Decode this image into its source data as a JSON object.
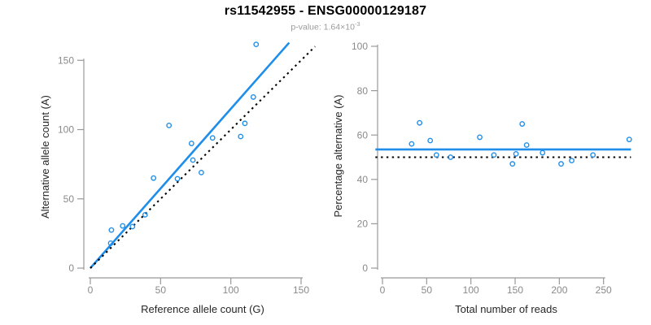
{
  "header": {
    "title": "rs11542955 - ENSG00000129187",
    "subtitle_prefix": "p-value: 1.64×10",
    "subtitle_exponent": "-3"
  },
  "colors": {
    "blue": "#1E8EEA",
    "black": "#000000",
    "axis_gray": "#999999",
    "tick_label_gray": "#8A8A8A",
    "subtitle_gray": "#9A9A9A",
    "axis_title_color": "#262626"
  },
  "chart_data": [
    {
      "type": "scatter",
      "xlabel": "Reference allele count (G)",
      "ylabel": "Alternative allele count (A)",
      "x_ticks": [
        0,
        50,
        100,
        150
      ],
      "y_ticks": [
        0,
        50,
        100,
        150
      ],
      "xlim": [
        0,
        160
      ],
      "ylim": [
        0,
        165
      ],
      "grid": false,
      "points": [
        [
          14.5,
          18
        ],
        [
          15,
          27.5
        ],
        [
          23,
          30.5
        ],
        [
          30,
          30
        ],
        [
          39,
          38.5
        ],
        [
          45,
          65
        ],
        [
          56,
          103
        ],
        [
          62,
          64.5
        ],
        [
          72,
          90
        ],
        [
          73,
          78
        ],
        [
          79,
          69
        ],
        [
          87,
          94
        ],
        [
          107,
          95
        ],
        [
          110,
          104.5
        ],
        [
          116,
          123.5
        ],
        [
          118,
          161.5
        ]
      ],
      "lines": [
        {
          "name": "fitted-proportion-line",
          "style": "solid",
          "color_key": "blue",
          "slope": 1.15,
          "intercept": 0,
          "x_range": [
            0,
            141.5
          ]
        },
        {
          "name": "identity-line",
          "style": "dotted",
          "color_key": "black",
          "slope": 1,
          "intercept": 0,
          "x_range": [
            0,
            160
          ]
        }
      ]
    },
    {
      "type": "scatter",
      "xlabel": "Total number of reads",
      "ylabel": "Percentage alternative (A)",
      "x_ticks": [
        0,
        50,
        100,
        150,
        200,
        250
      ],
      "y_ticks": [
        0,
        20,
        40,
        60,
        80,
        100
      ],
      "xlim": [
        0,
        290
      ],
      "ylim": [
        0,
        100
      ],
      "grid": false,
      "points": [
        [
          33,
          56
        ],
        [
          42,
          65.5
        ],
        [
          54,
          57.5
        ],
        [
          61,
          51
        ],
        [
          77,
          50
        ],
        [
          110,
          59
        ],
        [
          126,
          51
        ],
        [
          147,
          47
        ],
        [
          151,
          51.5
        ],
        [
          158,
          65
        ],
        [
          163,
          55.5
        ],
        [
          181,
          52
        ],
        [
          202,
          47
        ],
        [
          214,
          48.5
        ],
        [
          238,
          51
        ],
        [
          279,
          58
        ]
      ],
      "lines": [
        {
          "name": "mean-percentage-line",
          "style": "solid",
          "color_key": "blue",
          "h": 53.5,
          "x_range": [
            -8,
            281
          ]
        },
        {
          "name": "expected-50-percent-line",
          "style": "dotted",
          "color_key": "black",
          "h": 50,
          "x_range": [
            -8,
            281
          ]
        }
      ]
    }
  ]
}
